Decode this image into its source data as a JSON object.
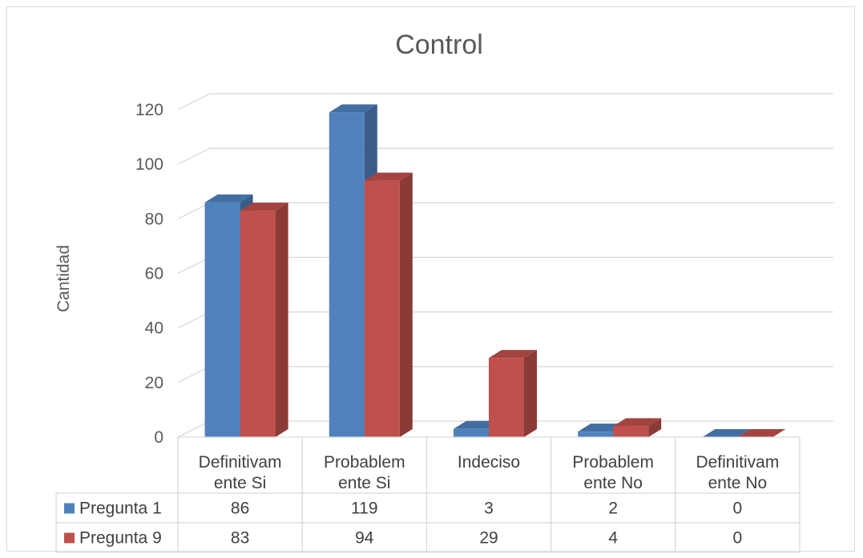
{
  "chart_data": {
    "type": "bar",
    "title": "Control",
    "ylabel": "Cantidad",
    "ylim": [
      0,
      120
    ],
    "yticks": [
      0,
      20,
      40,
      60,
      80,
      100,
      120
    ],
    "categories": [
      [
        "Definitivam",
        "ente Si"
      ],
      [
        "Probablem",
        "ente Si"
      ],
      [
        "Indeciso"
      ],
      [
        "Probablem",
        "ente No"
      ],
      [
        "Definitivam",
        "ente No"
      ]
    ],
    "series": [
      {
        "name": "Pregunta 1",
        "values": [
          86,
          119,
          3,
          2,
          0
        ],
        "color": "#4f81bd"
      },
      {
        "name": "Pregunta 9",
        "values": [
          83,
          94,
          29,
          4,
          0
        ],
        "color": "#c0504d"
      }
    ],
    "grid": true,
    "legend": "data-table"
  }
}
